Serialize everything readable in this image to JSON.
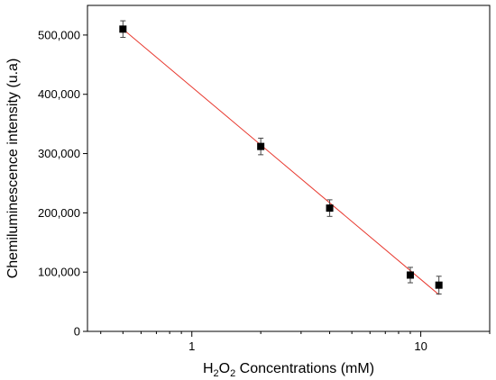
{
  "chart_data": {
    "type": "scatter",
    "xscale": "log",
    "xlabel": {
      "prefix": "H",
      "sub1": "2",
      "mid": "O",
      "sub2": "2",
      "suffix": " Concentrations (mM)"
    },
    "ylabel": "Chemiluminescence intensity (u.a)",
    "xlim": [
      0.35,
      20
    ],
    "ylim": [
      0,
      550000
    ],
    "x_ticks": [
      {
        "value": 1,
        "label": "1"
      },
      {
        "value": 10,
        "label": "10"
      }
    ],
    "y_ticks": [
      {
        "value": 0,
        "label": "0"
      },
      {
        "value": 100000,
        "label": "100,000"
      },
      {
        "value": 200000,
        "label": "200,000"
      },
      {
        "value": 300000,
        "label": "300,000"
      },
      {
        "value": 400000,
        "label": "400,000"
      },
      {
        "value": 500000,
        "label": "500,000"
      }
    ],
    "series": [
      {
        "points": [
          {
            "x": 0.5,
            "y": 510000,
            "err": 14000
          },
          {
            "x": 2,
            "y": 312000,
            "err": 14000
          },
          {
            "x": 4,
            "y": 208000,
            "err": 14000
          },
          {
            "x": 9,
            "y": 95000,
            "err": 13000
          },
          {
            "x": 12,
            "y": 78000,
            "err": 15000
          }
        ]
      }
    ],
    "fit_line": {
      "x": [
        0.5,
        12
      ],
      "y": [
        510000,
        62000
      ]
    },
    "colors": {
      "marker": "#000000",
      "fit": "#e8392f",
      "error_bar": "#444444"
    },
    "grid": false
  }
}
